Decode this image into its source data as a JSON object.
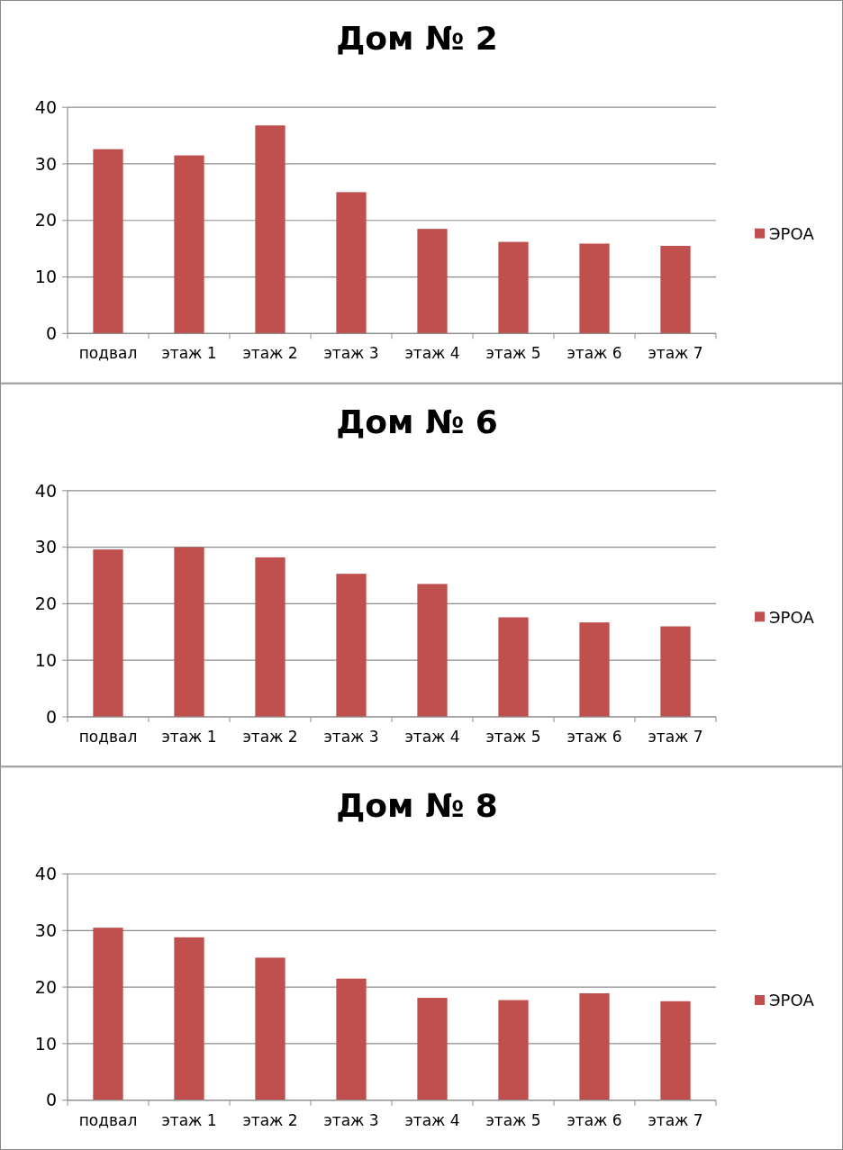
{
  "chart_data": [
    {
      "type": "bar",
      "title": "Дом № 2",
      "categories": [
        "подвал",
        "этаж 1",
        "этаж 2",
        "этаж 3",
        "этаж 4",
        "этаж 5",
        "этаж 6",
        "этаж 7"
      ],
      "series": [
        {
          "name": "ЭРОА",
          "color": "#c0504d",
          "values": [
            32.6,
            31.5,
            36.8,
            25.0,
            18.5,
            16.2,
            15.9,
            15.5
          ]
        }
      ],
      "ylim": [
        0,
        40
      ],
      "yticks": [
        0,
        10,
        20,
        30,
        40
      ],
      "grid": "y",
      "legend": "right"
    },
    {
      "type": "bar",
      "title": "Дом № 6",
      "categories": [
        "подвал",
        "этаж 1",
        "этаж 2",
        "этаж 3",
        "этаж 4",
        "этаж 5",
        "этаж 6",
        "этаж 7"
      ],
      "series": [
        {
          "name": "ЭРОА",
          "color": "#c0504d",
          "values": [
            29.6,
            30.0,
            28.2,
            25.3,
            23.5,
            17.6,
            16.7,
            16.0
          ]
        }
      ],
      "ylim": [
        0,
        40
      ],
      "yticks": [
        0,
        10,
        20,
        30,
        40
      ],
      "grid": "y",
      "legend": "right"
    },
    {
      "type": "bar",
      "title": "Дом № 8",
      "categories": [
        "подвал",
        "этаж 1",
        "этаж 2",
        "этаж 3",
        "этаж 4",
        "этаж 5",
        "этаж 6",
        "этаж 7"
      ],
      "series": [
        {
          "name": "ЭРОА",
          "color": "#c0504d",
          "values": [
            30.5,
            28.8,
            25.2,
            21.5,
            18.1,
            17.7,
            18.9,
            17.5
          ]
        }
      ],
      "ylim": [
        0,
        40
      ],
      "yticks": [
        0,
        10,
        20,
        30,
        40
      ],
      "grid": "y",
      "legend": "right"
    }
  ]
}
